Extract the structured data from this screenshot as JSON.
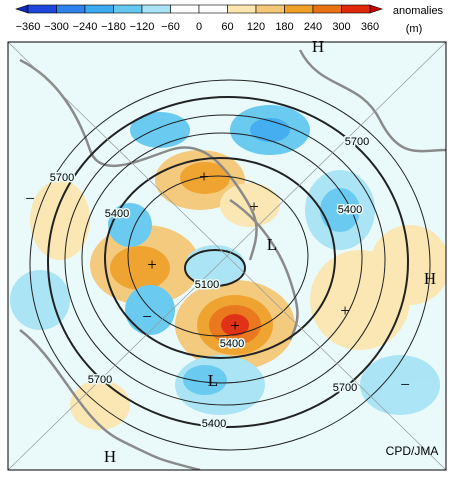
{
  "colorbar": {
    "labels": [
      "−360",
      "−300",
      "−240",
      "−180",
      "−120",
      "−60",
      "0",
      "60",
      "120",
      "180",
      "240",
      "300",
      "360"
    ],
    "colors": [
      "#1e46dc",
      "#2d82eb",
      "#3caaf0",
      "#64c8f0",
      "#a8e4f5",
      "#ffffff",
      "#ffffff",
      "#fbe6b0",
      "#f5c878",
      "#f0a028",
      "#eb7214",
      "#e0280a"
    ],
    "low_end_color": "#1428b4",
    "high_end_color": "#c80000",
    "unit_title": "anomalies",
    "unit": "(m)"
  },
  "map": {
    "labels": [
      "H",
      "H",
      "H",
      "L",
      "L",
      "+",
      "+",
      "+",
      "+",
      "+",
      "−",
      "−",
      "−",
      "5700",
      "5700",
      "5700",
      "5700",
      "5400",
      "5400",
      "5400",
      "5400",
      "5100"
    ],
    "credit": "CPD/JMA"
  }
}
